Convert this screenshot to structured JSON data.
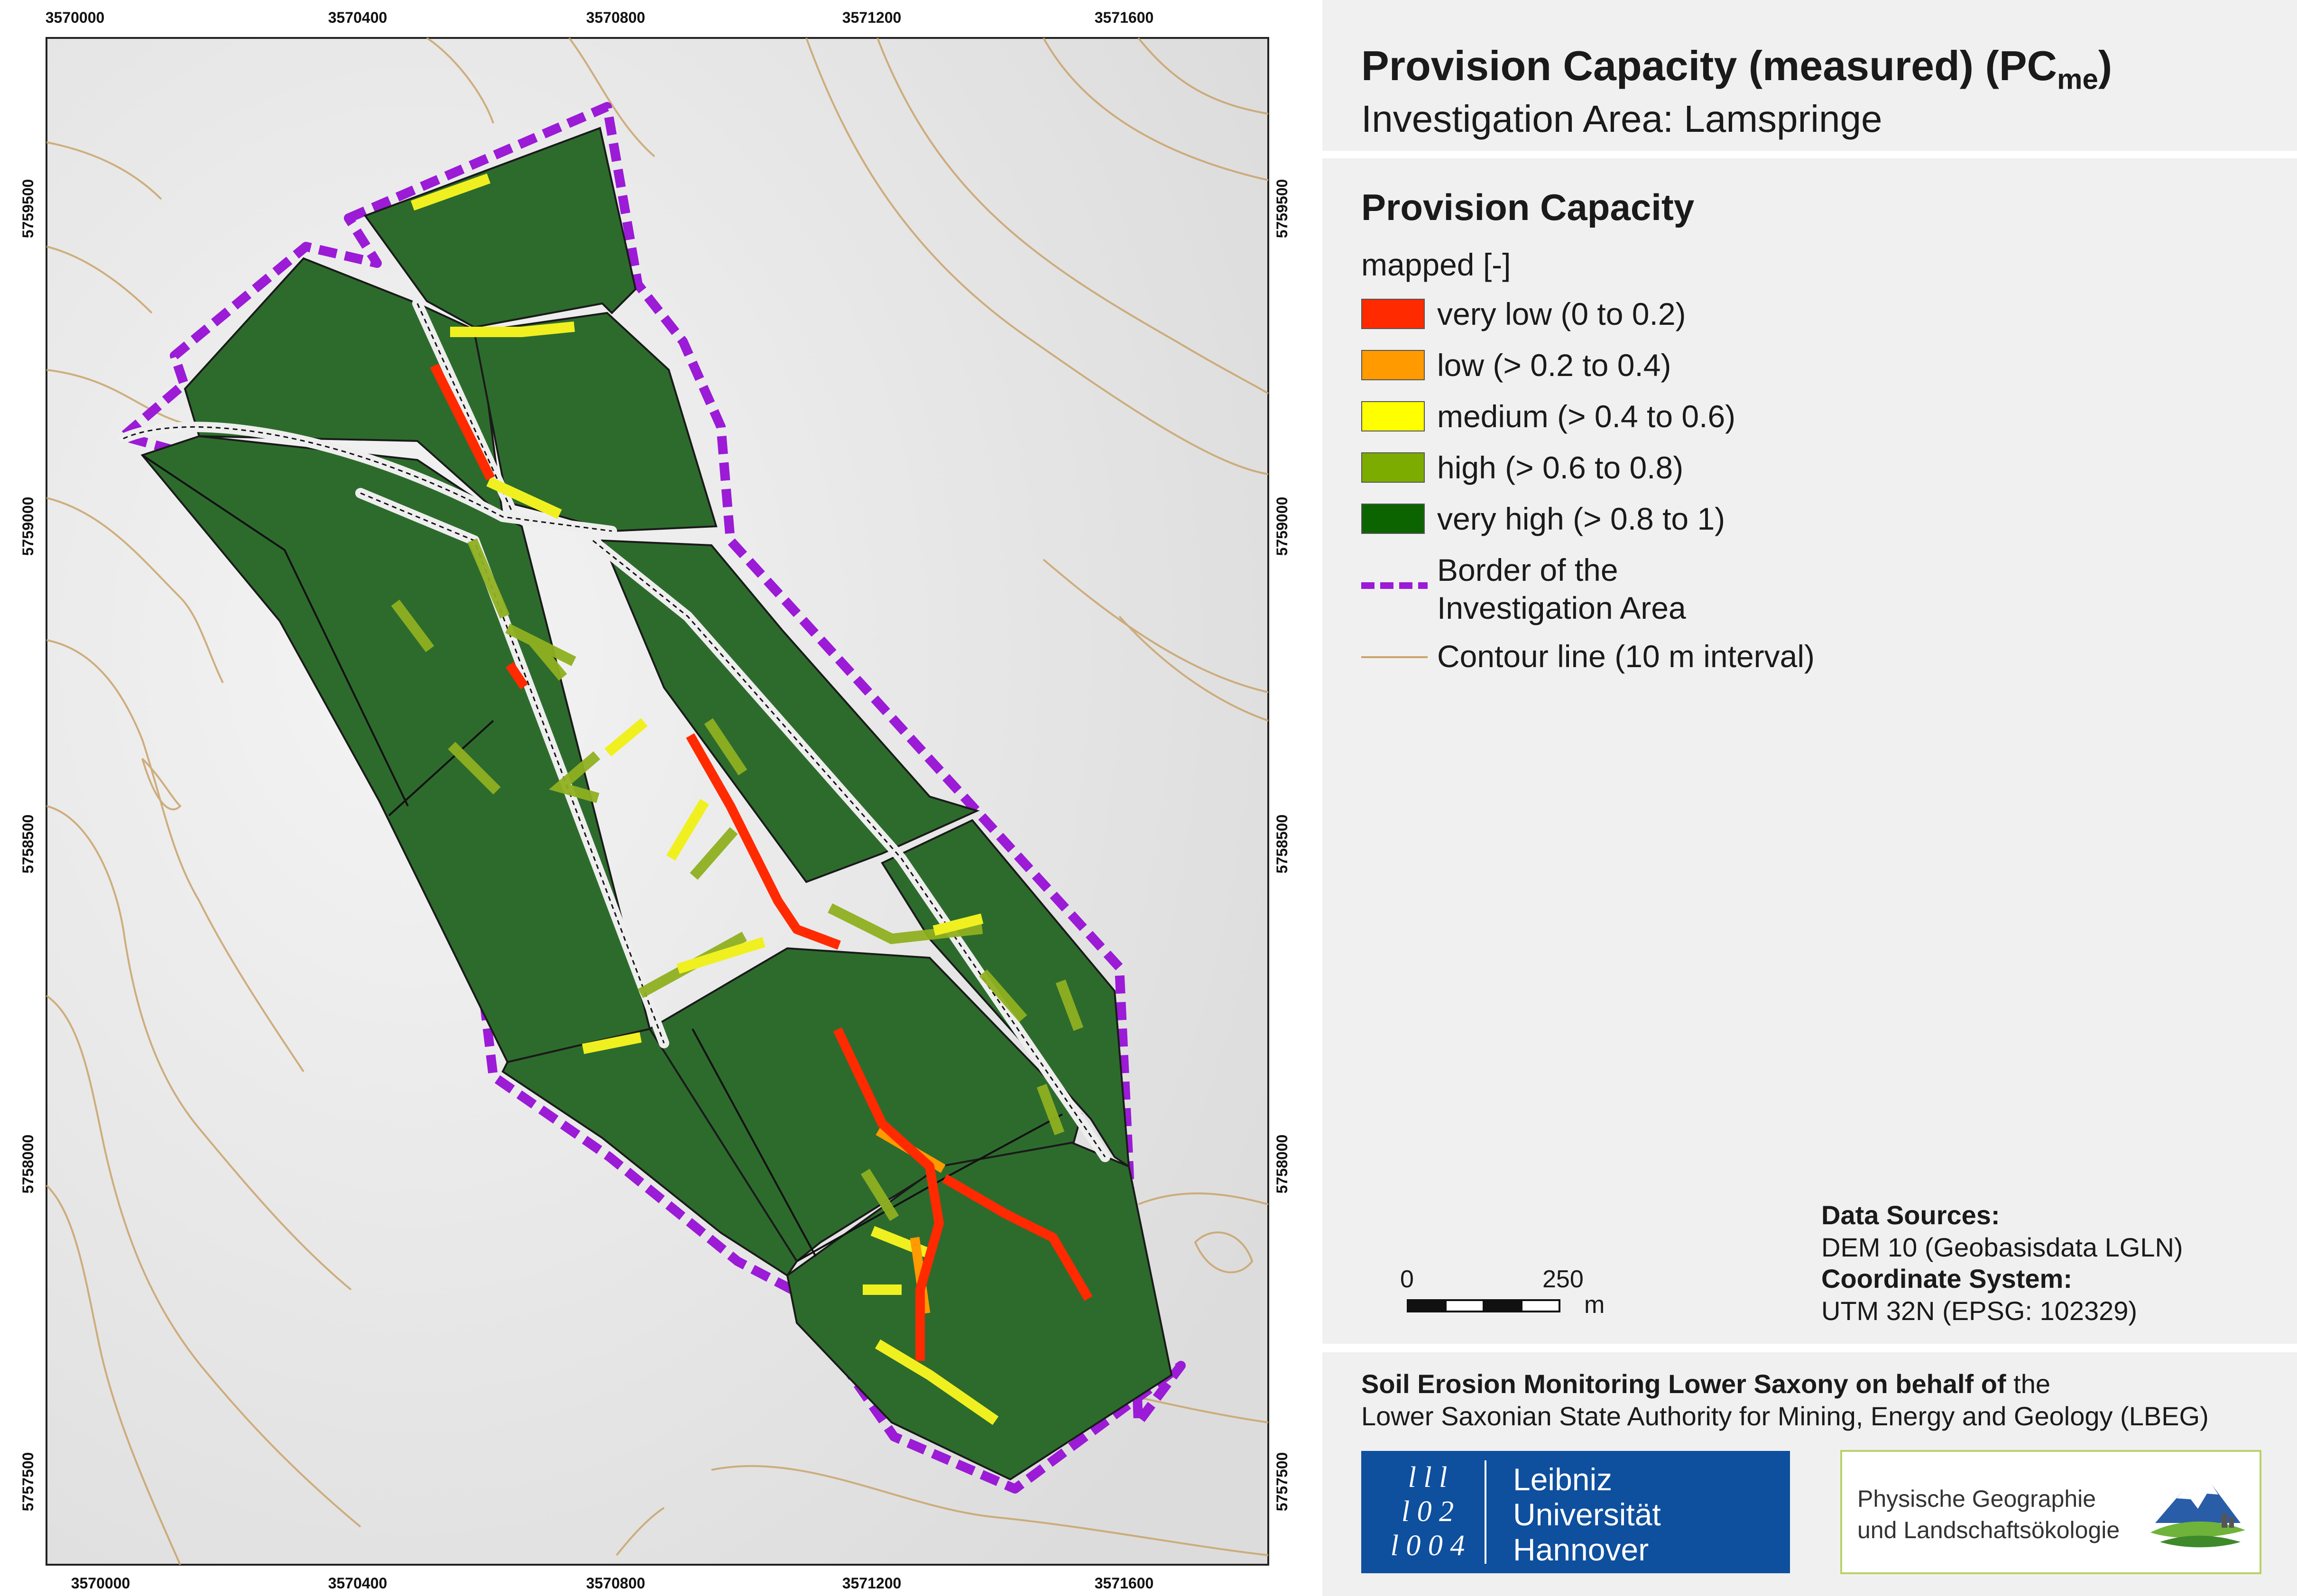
{
  "title": "Provision Capacity (measured) (PC",
  "title_sub": "me",
  "title_end": ")",
  "subtitle": "Investigation Area: Lamspringe",
  "legend": {
    "heading": "Provision Capacity",
    "subheading": "mapped [-]",
    "classes": [
      {
        "label": "very low (0 to  0.2)",
        "color": "#ff2a00"
      },
      {
        "label": "low (> 0.2 to  0.4)",
        "color": "#ff9a00"
      },
      {
        "label": "medium (> 0.4 to 0.6)",
        "color": "#ffff00"
      },
      {
        "label": "high (> 0.6 to 0.8)",
        "color": "#7dac00"
      },
      {
        "label": "very high (> 0.8 to 1)",
        "color": "#0c6400"
      }
    ],
    "border_label_1": "Border of the",
    "border_label_2": "Investigation Area",
    "border_color": "#9b1bd6",
    "contour_label": "Contour line (10 m interval)",
    "contour_color": "#c9a36a"
  },
  "axes": {
    "x_ticks": [
      "3570000",
      "3570400",
      "3570800",
      "3571200",
      "3571600"
    ],
    "y_ticks": [
      "5759500",
      "5759000",
      "5758500",
      "5758000",
      "5757500"
    ]
  },
  "scalebar": {
    "zero": "0",
    "value": "250",
    "unit": "m"
  },
  "sources": {
    "data_label": "Data Sources:",
    "data_value": "DEM 10 (Geobasisdata LGLN)",
    "crs_label": "Coordinate System:",
    "crs_value": "UTM 32N (EPSG: 102329)"
  },
  "credit": {
    "line1_bold": "Soil Erosion Monitoring Lower Saxony on behalf of",
    "line1_rest": " the",
    "line2": "Lower Saxonian State Authority for Mining, Energy and Geology (LBEG)"
  },
  "logos": {
    "luh_mark": [
      "l l l",
      "l 0 2",
      "l 0 0 4"
    ],
    "luh_lines": [
      "Leibniz",
      "Universität",
      "Hannover"
    ],
    "pg_lines": [
      "Physische Geographie",
      "und Landschaftsökologie"
    ]
  }
}
